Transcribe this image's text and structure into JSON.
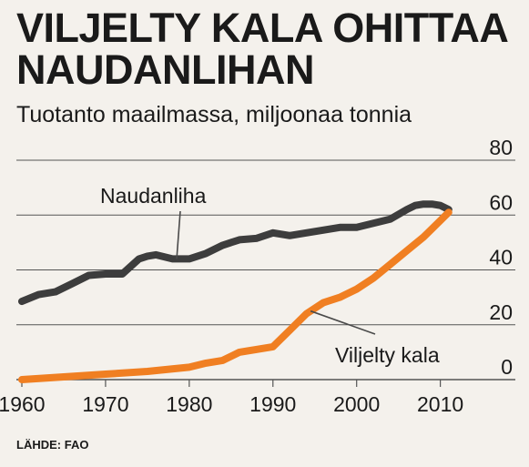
{
  "title": "VILJELTY KALA OHITTAA NAUDANLIHAN",
  "subtitle": "Tuotanto maailmassa, miljoonaa tonnia",
  "source": "LÄHDE: FAO",
  "colors": {
    "naudanliha": "#3d3d3d",
    "kala": "#f07f22",
    "grid": "#555555",
    "background": "#f4f1ec"
  },
  "chart_data": {
    "type": "line",
    "title": "VILJELTY KALA OHITTAA NAUDANLIHAN",
    "subtitle": "Tuotanto maailmassa, miljoonaa tonnia",
    "xlabel": "",
    "ylabel": "",
    "xlim": [
      1960,
      2012
    ],
    "ylim": [
      0,
      80
    ],
    "x_ticks": [
      1960,
      1970,
      1980,
      1990,
      2000,
      2010
    ],
    "y_ticks": [
      0,
      20,
      40,
      60,
      80
    ],
    "grid": true,
    "series": [
      {
        "name": "Naudanliha",
        "color": "#3d3d3d",
        "x": [
          1960,
          1962,
          1964,
          1966,
          1968,
          1970,
          1972,
          1974,
          1975,
          1976,
          1978,
          1980,
          1982,
          1984,
          1986,
          1988,
          1990,
          1992,
          1994,
          1996,
          1998,
          2000,
          2002,
          2004,
          2006,
          2007,
          2008,
          2009,
          2010,
          2011
        ],
        "values": [
          28.5,
          31,
          32,
          35,
          38,
          38.5,
          38.5,
          44,
          45,
          45.5,
          44,
          44,
          46,
          49,
          51,
          51.5,
          53.5,
          52.5,
          53.5,
          54.5,
          55.5,
          55.5,
          57,
          58.5,
          62,
          63.5,
          64,
          64,
          63.5,
          62
        ]
      },
      {
        "name": "Viljelty kala",
        "color": "#f07f22",
        "x": [
          1960,
          1965,
          1970,
          1975,
          1980,
          1982,
          1984,
          1986,
          1988,
          1990,
          1992,
          1994,
          1996,
          1998,
          2000,
          2002,
          2004,
          2006,
          2008,
          2010,
          2011
        ],
        "values": [
          0,
          1,
          2,
          3,
          4.5,
          6,
          7,
          10,
          11,
          12,
          18,
          24,
          28,
          30,
          33,
          37,
          42,
          47,
          52,
          58,
          61
        ]
      }
    ],
    "annotations": [
      {
        "text": "Naudanliha",
        "series": "Naudanliha",
        "at_x": 1978.5
      },
      {
        "text": "Viljelty kala",
        "series": "Viljelty kala",
        "at_x": 1994.5
      }
    ]
  }
}
